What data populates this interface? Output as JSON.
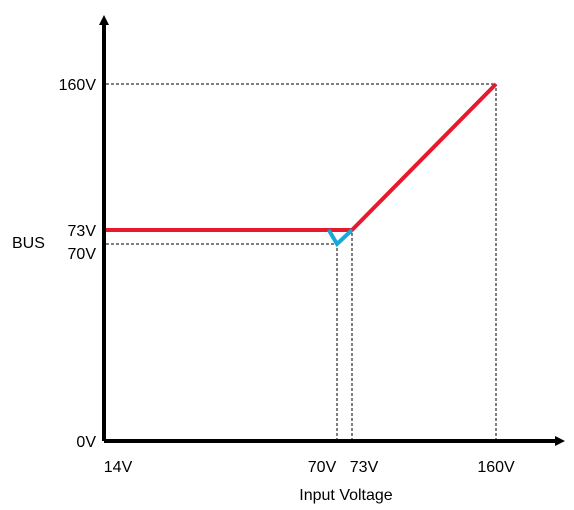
{
  "chart_data": {
    "type": "line",
    "xlabel": "Input Voltage",
    "ylabel": "BUS",
    "x_ticks": [
      "14V",
      "70V",
      "73V",
      "160V"
    ],
    "y_ticks": [
      "0V",
      "70V",
      "73V",
      "160V"
    ],
    "series": [
      {
        "color": "#e8192c",
        "points": [
          [
            14,
            73
          ],
          [
            73,
            73
          ],
          [
            160,
            160
          ]
        ]
      },
      {
        "color": "#1aa7d6",
        "points": [
          [
            68,
            73
          ],
          [
            70,
            70
          ],
          [
            73,
            73
          ]
        ]
      }
    ],
    "reference_lines": [
      {
        "from": [
          70,
          0
        ],
        "to": [
          70,
          70
        ],
        "style": "dashed"
      },
      {
        "from": [
          73,
          0
        ],
        "to": [
          73,
          73
        ],
        "style": "dashed"
      },
      {
        "from": [
          160,
          0
        ],
        "to": [
          160,
          160
        ],
        "style": "dashed"
      },
      {
        "from": [
          14,
          70
        ],
        "to": [
          70,
          70
        ],
        "style": "dashed"
      },
      {
        "from": [
          14,
          160
        ],
        "to": [
          160,
          160
        ],
        "style": "dashed"
      }
    ],
    "grid": false,
    "legend": "none"
  }
}
